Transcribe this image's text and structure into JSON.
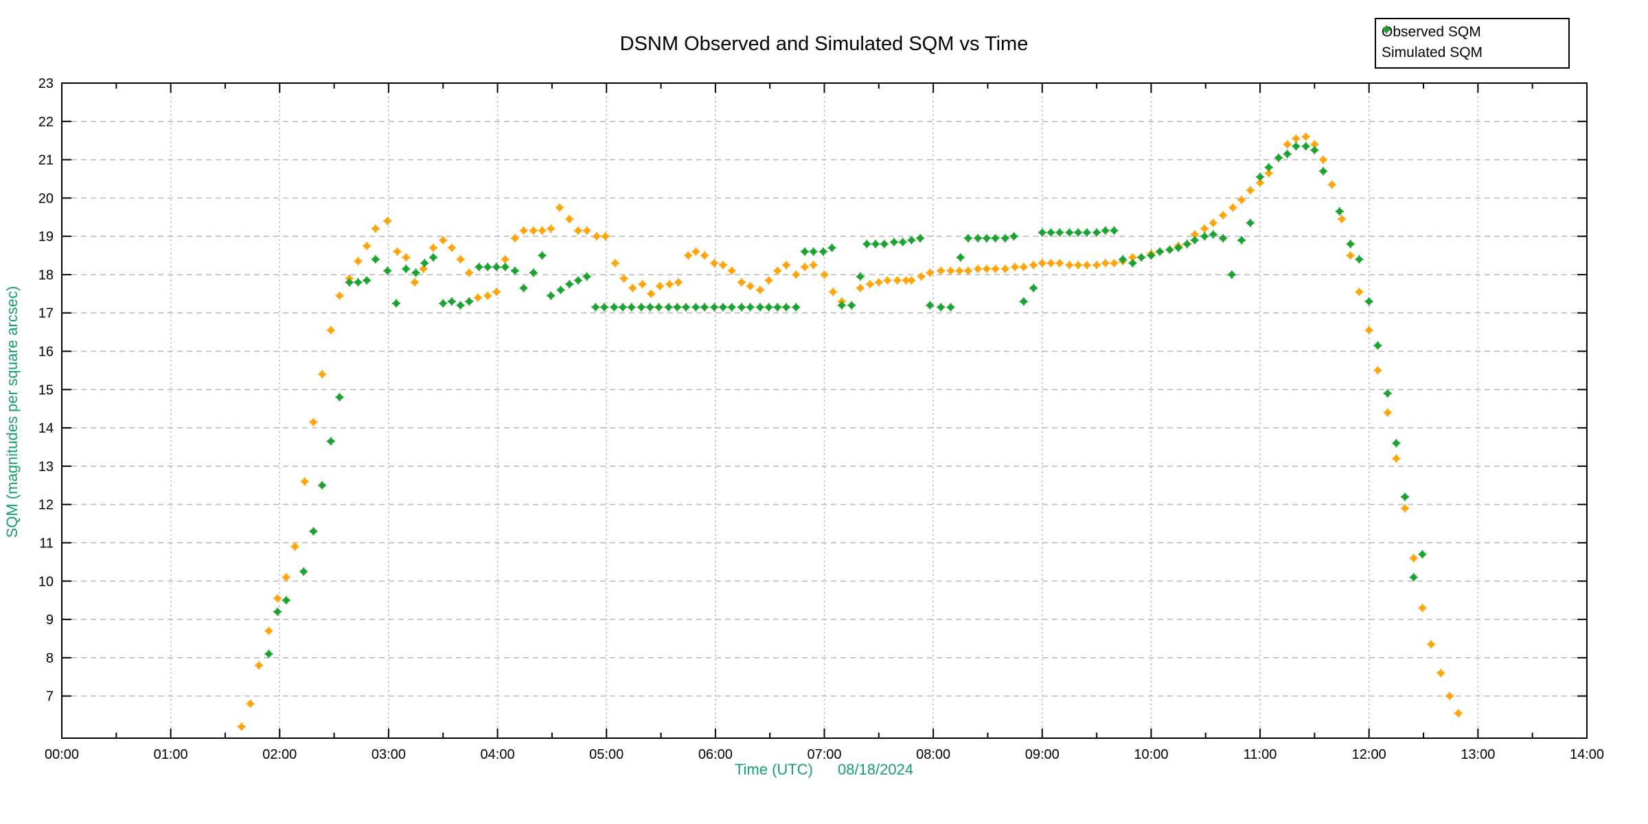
{
  "title": "DSNM Observed and Simulated SQM vs Time",
  "legend": {
    "items": [
      {
        "label": "Observed SQM",
        "color": "#FFA50A"
      },
      {
        "label": "Simulated SQM",
        "color": "#1BA330"
      }
    ]
  },
  "colors": {
    "axis_label": "#149E73",
    "tick_label": "#000000",
    "border": "#000000",
    "grid": "#BBBBBB",
    "background": "#FFFFFF",
    "observed": "#FFA50A",
    "simulated": "#1BA330"
  },
  "chart_data": {
    "type": "scatter",
    "title": "DSNM Observed and Simulated SQM vs Time",
    "xlabel": "Time (UTC)",
    "xlabel_date": "08/18/2024",
    "ylabel": "SQM (magnitudes per square arcsec)",
    "xlim": [
      0,
      14
    ],
    "ylim": [
      5.9,
      23
    ],
    "grid": true,
    "legend_position": "top-right",
    "x_tick_hours": [
      0,
      1,
      2,
      3,
      4,
      5,
      6,
      7,
      8,
      9,
      10,
      11,
      12,
      13,
      14
    ],
    "x_tick_labels": [
      "00:00",
      "01:00",
      "02:00",
      "03:00",
      "04:00",
      "05:00",
      "06:00",
      "07:00",
      "08:00",
      "09:00",
      "10:00",
      "11:00",
      "12:00",
      "13:00",
      "14:00"
    ],
    "x_minor_tick_step": 0.5,
    "y_ticks": [
      7,
      8,
      9,
      10,
      11,
      12,
      13,
      14,
      15,
      16,
      17,
      18,
      19,
      20,
      21,
      22,
      23
    ],
    "series": [
      {
        "name": "Observed SQM",
        "color": "#FFA50A",
        "points": [
          [
            1.65,
            6.2
          ],
          [
            1.73,
            6.8
          ],
          [
            1.81,
            7.8
          ],
          [
            1.9,
            8.7
          ],
          [
            1.98,
            9.55
          ],
          [
            2.06,
            10.1
          ],
          [
            2.14,
            10.9
          ],
          [
            2.23,
            12.6
          ],
          [
            2.31,
            14.15
          ],
          [
            2.39,
            15.4
          ],
          [
            2.47,
            16.55
          ],
          [
            2.55,
            17.45
          ],
          [
            2.64,
            17.9
          ],
          [
            2.72,
            18.35
          ],
          [
            2.8,
            18.75
          ],
          [
            2.88,
            19.2
          ],
          [
            2.99,
            19.4
          ],
          [
            3.08,
            18.6
          ],
          [
            3.16,
            18.45
          ],
          [
            3.24,
            17.8
          ],
          [
            3.32,
            18.15
          ],
          [
            3.41,
            18.7
          ],
          [
            3.5,
            18.9
          ],
          [
            3.58,
            18.7
          ],
          [
            3.66,
            18.4
          ],
          [
            3.74,
            18.05
          ],
          [
            3.82,
            17.4
          ],
          [
            3.91,
            17.45
          ],
          [
            3.99,
            17.55
          ],
          [
            4.07,
            18.4
          ],
          [
            4.16,
            18.95
          ],
          [
            4.24,
            19.15
          ],
          [
            4.33,
            19.15
          ],
          [
            4.41,
            19.15
          ],
          [
            4.49,
            19.2
          ],
          [
            4.57,
            19.75
          ],
          [
            4.66,
            19.45
          ],
          [
            4.74,
            19.15
          ],
          [
            4.82,
            19.15
          ],
          [
            4.91,
            19.0
          ],
          [
            4.99,
            19.0
          ],
          [
            5.08,
            18.3
          ],
          [
            5.16,
            17.9
          ],
          [
            5.24,
            17.65
          ],
          [
            5.33,
            17.75
          ],
          [
            5.41,
            17.5
          ],
          [
            5.49,
            17.7
          ],
          [
            5.58,
            17.75
          ],
          [
            5.66,
            17.8
          ],
          [
            5.75,
            18.5
          ],
          [
            5.82,
            18.6
          ],
          [
            5.9,
            18.5
          ],
          [
            5.99,
            18.3
          ],
          [
            6.07,
            18.25
          ],
          [
            6.15,
            18.1
          ],
          [
            6.24,
            17.8
          ],
          [
            6.32,
            17.7
          ],
          [
            6.41,
            17.6
          ],
          [
            6.49,
            17.85
          ],
          [
            6.57,
            18.1
          ],
          [
            6.65,
            18.25
          ],
          [
            6.74,
            18.0
          ],
          [
            6.82,
            18.2
          ],
          [
            6.9,
            18.25
          ],
          [
            7.0,
            18.0
          ],
          [
            7.08,
            17.55
          ],
          [
            7.16,
            17.3
          ],
          [
            7.33,
            17.65
          ],
          [
            7.42,
            17.75
          ],
          [
            7.5,
            17.8
          ],
          [
            7.58,
            17.85
          ],
          [
            7.67,
            17.85
          ],
          [
            7.75,
            17.85
          ],
          [
            7.8,
            17.85
          ],
          [
            7.89,
            17.95
          ],
          [
            7.97,
            18.05
          ],
          [
            8.07,
            18.1
          ],
          [
            8.16,
            18.1
          ],
          [
            8.24,
            18.1
          ],
          [
            8.32,
            18.1
          ],
          [
            8.41,
            18.15
          ],
          [
            8.49,
            18.15
          ],
          [
            8.57,
            18.15
          ],
          [
            8.66,
            18.15
          ],
          [
            8.75,
            18.2
          ],
          [
            8.83,
            18.2
          ],
          [
            8.92,
            18.25
          ],
          [
            9.0,
            18.3
          ],
          [
            9.08,
            18.3
          ],
          [
            9.16,
            18.3
          ],
          [
            9.25,
            18.25
          ],
          [
            9.33,
            18.25
          ],
          [
            9.41,
            18.25
          ],
          [
            9.5,
            18.25
          ],
          [
            9.58,
            18.3
          ],
          [
            9.66,
            18.3
          ],
          [
            9.74,
            18.35
          ],
          [
            9.83,
            18.45
          ],
          [
            9.91,
            18.45
          ],
          [
            10.0,
            18.55
          ],
          [
            10.08,
            18.6
          ],
          [
            10.17,
            18.65
          ],
          [
            10.25,
            18.75
          ],
          [
            10.33,
            18.8
          ],
          [
            10.4,
            19.05
          ],
          [
            10.49,
            19.2
          ],
          [
            10.57,
            19.35
          ],
          [
            10.66,
            19.55
          ],
          [
            10.75,
            19.75
          ],
          [
            10.83,
            19.95
          ],
          [
            10.91,
            20.2
          ],
          [
            11.0,
            20.4
          ],
          [
            11.08,
            20.65
          ],
          [
            11.17,
            21.05
          ],
          [
            11.25,
            21.4
          ],
          [
            11.33,
            21.55
          ],
          [
            11.42,
            21.6
          ],
          [
            11.5,
            21.4
          ],
          [
            11.58,
            21.0
          ],
          [
            11.66,
            20.35
          ],
          [
            11.75,
            19.45
          ],
          [
            11.83,
            18.5
          ],
          [
            11.91,
            17.55
          ],
          [
            12.0,
            16.55
          ],
          [
            12.08,
            15.5
          ],
          [
            12.17,
            14.4
          ],
          [
            12.25,
            13.2
          ],
          [
            12.33,
            11.9
          ],
          [
            12.41,
            10.6
          ],
          [
            12.49,
            9.3
          ],
          [
            12.57,
            8.35
          ],
          [
            12.66,
            7.6
          ],
          [
            12.74,
            7.0
          ],
          [
            12.82,
            6.55
          ]
        ]
      },
      {
        "name": "Simulated SQM",
        "color": "#1BA330",
        "points": [
          [
            1.9,
            8.1
          ],
          [
            1.98,
            9.2
          ],
          [
            2.06,
            9.5
          ],
          [
            2.22,
            10.25
          ],
          [
            2.31,
            11.3
          ],
          [
            2.39,
            12.5
          ],
          [
            2.47,
            13.65
          ],
          [
            2.55,
            14.8
          ],
          [
            2.64,
            17.8
          ],
          [
            2.72,
            17.8
          ],
          [
            2.8,
            17.85
          ],
          [
            2.88,
            18.4
          ],
          [
            2.99,
            18.1
          ],
          [
            3.07,
            17.25
          ],
          [
            3.16,
            18.15
          ],
          [
            3.25,
            18.05
          ],
          [
            3.33,
            18.3
          ],
          [
            3.41,
            18.45
          ],
          [
            3.5,
            17.25
          ],
          [
            3.58,
            17.3
          ],
          [
            3.66,
            17.2
          ],
          [
            3.74,
            17.3
          ],
          [
            3.83,
            18.2
          ],
          [
            3.91,
            18.2
          ],
          [
            3.99,
            18.2
          ],
          [
            4.07,
            18.2
          ],
          [
            4.16,
            18.1
          ],
          [
            4.24,
            17.65
          ],
          [
            4.33,
            18.05
          ],
          [
            4.41,
            18.5
          ],
          [
            4.49,
            17.45
          ],
          [
            4.58,
            17.6
          ],
          [
            4.66,
            17.75
          ],
          [
            4.74,
            17.85
          ],
          [
            4.82,
            17.95
          ],
          [
            4.9,
            17.15
          ],
          [
            4.98,
            17.15
          ],
          [
            5.07,
            17.15
          ],
          [
            5.15,
            17.15
          ],
          [
            5.23,
            17.15
          ],
          [
            5.32,
            17.15
          ],
          [
            5.4,
            17.15
          ],
          [
            5.48,
            17.15
          ],
          [
            5.57,
            17.15
          ],
          [
            5.65,
            17.15
          ],
          [
            5.73,
            17.15
          ],
          [
            5.82,
            17.15
          ],
          [
            5.9,
            17.15
          ],
          [
            5.99,
            17.15
          ],
          [
            6.07,
            17.15
          ],
          [
            6.15,
            17.15
          ],
          [
            6.24,
            17.15
          ],
          [
            6.32,
            17.15
          ],
          [
            6.41,
            17.15
          ],
          [
            6.49,
            17.15
          ],
          [
            6.57,
            17.15
          ],
          [
            6.65,
            17.15
          ],
          [
            6.74,
            17.15
          ],
          [
            6.82,
            18.6
          ],
          [
            6.9,
            18.6
          ],
          [
            6.99,
            18.6
          ],
          [
            7.07,
            18.7
          ],
          [
            7.16,
            17.2
          ],
          [
            7.25,
            17.2
          ],
          [
            7.33,
            17.95
          ],
          [
            7.39,
            18.8
          ],
          [
            7.47,
            18.8
          ],
          [
            7.55,
            18.8
          ],
          [
            7.64,
            18.85
          ],
          [
            7.72,
            18.85
          ],
          [
            7.8,
            18.9
          ],
          [
            7.88,
            18.95
          ],
          [
            7.97,
            17.2
          ],
          [
            8.07,
            17.15
          ],
          [
            8.16,
            17.15
          ],
          [
            8.25,
            18.45
          ],
          [
            8.32,
            18.95
          ],
          [
            8.41,
            18.95
          ],
          [
            8.49,
            18.95
          ],
          [
            8.57,
            18.95
          ],
          [
            8.66,
            18.95
          ],
          [
            8.74,
            19.0
          ],
          [
            8.83,
            17.3
          ],
          [
            8.92,
            17.65
          ],
          [
            9.0,
            19.1
          ],
          [
            9.08,
            19.1
          ],
          [
            9.16,
            19.1
          ],
          [
            9.25,
            19.1
          ],
          [
            9.33,
            19.1
          ],
          [
            9.41,
            19.1
          ],
          [
            9.5,
            19.1
          ],
          [
            9.58,
            19.15
          ],
          [
            9.66,
            19.15
          ],
          [
            9.74,
            18.4
          ],
          [
            9.83,
            18.3
          ],
          [
            9.91,
            18.45
          ],
          [
            10.0,
            18.5
          ],
          [
            10.08,
            18.6
          ],
          [
            10.17,
            18.65
          ],
          [
            10.25,
            18.7
          ],
          [
            10.33,
            18.8
          ],
          [
            10.4,
            18.9
          ],
          [
            10.49,
            19.0
          ],
          [
            10.57,
            19.05
          ],
          [
            10.66,
            18.95
          ],
          [
            10.74,
            18.0
          ],
          [
            10.83,
            18.9
          ],
          [
            10.91,
            19.35
          ],
          [
            11.0,
            20.55
          ],
          [
            11.08,
            20.8
          ],
          [
            11.17,
            21.05
          ],
          [
            11.25,
            21.15
          ],
          [
            11.33,
            21.35
          ],
          [
            11.42,
            21.35
          ],
          [
            11.5,
            21.25
          ],
          [
            11.58,
            20.7
          ],
          [
            11.73,
            19.65
          ],
          [
            11.83,
            18.8
          ],
          [
            11.91,
            18.4
          ],
          [
            12.0,
            17.3
          ],
          [
            12.08,
            16.15
          ],
          [
            12.17,
            14.9
          ],
          [
            12.25,
            13.6
          ],
          [
            12.33,
            12.2
          ],
          [
            12.41,
            10.1
          ],
          [
            12.49,
            10.7
          ]
        ]
      }
    ]
  }
}
